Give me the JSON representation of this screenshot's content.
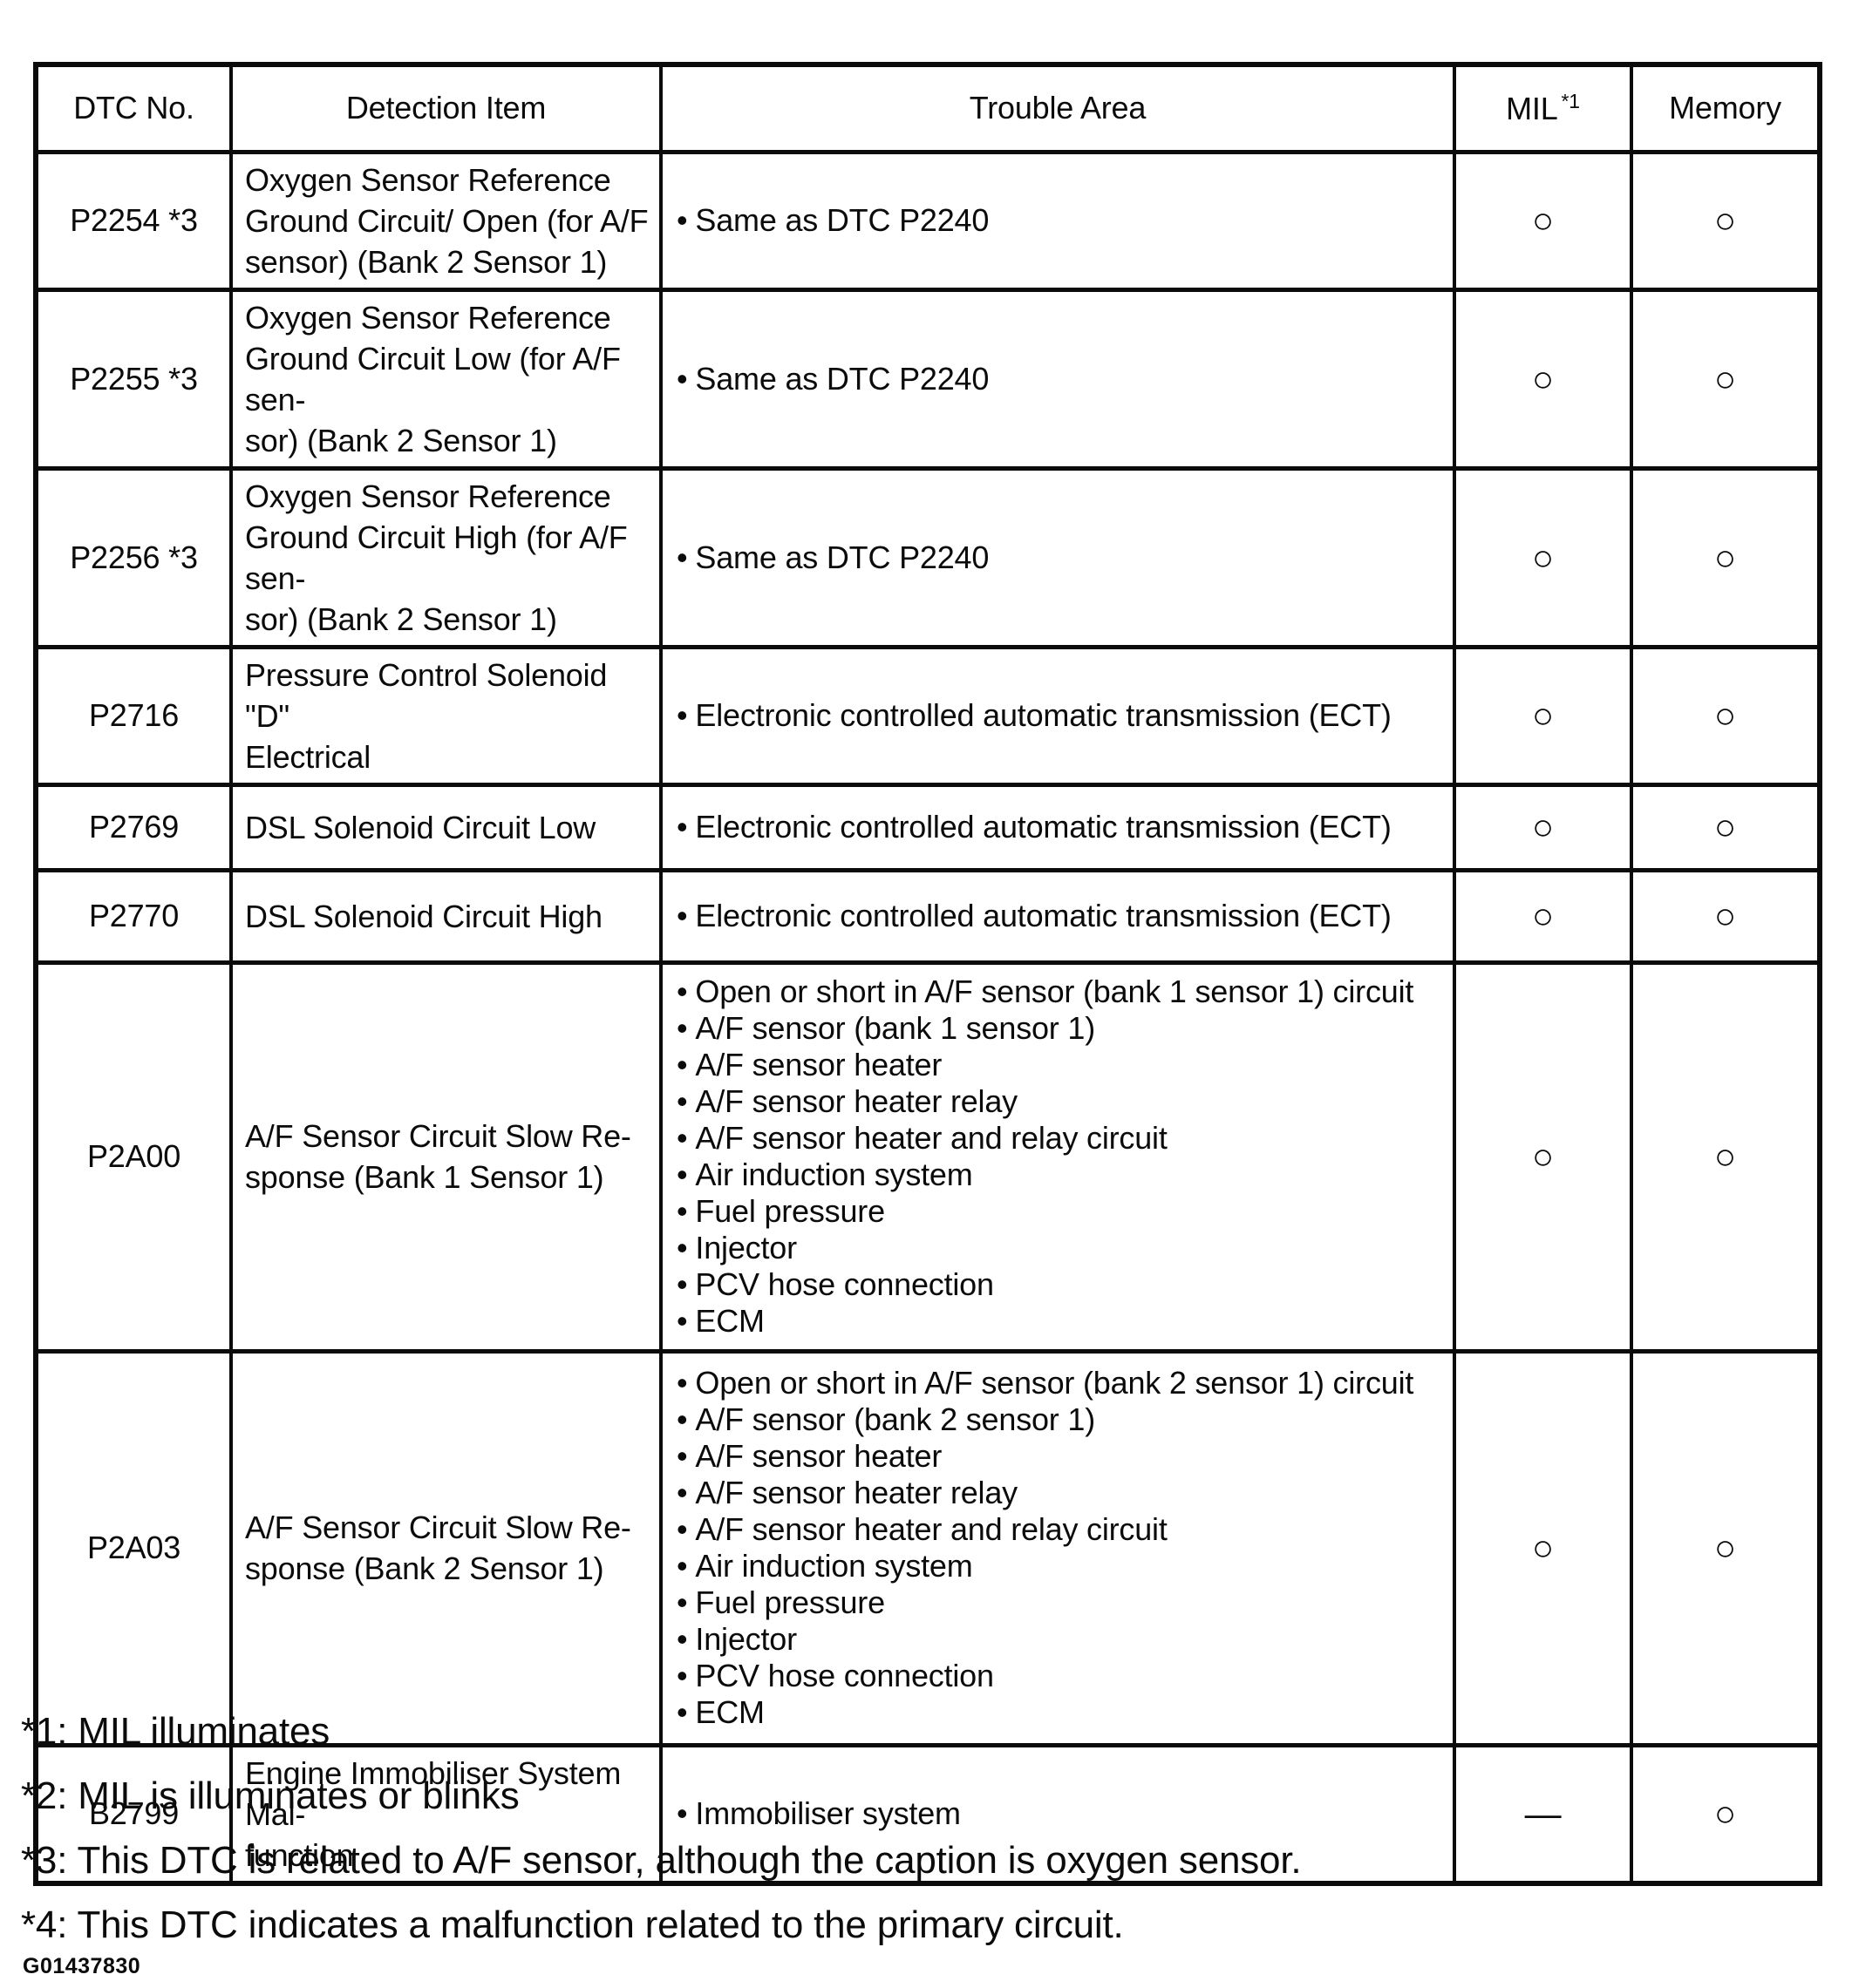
{
  "table": {
    "headers": {
      "dtc": "DTC No.",
      "detection": "Detection Item",
      "trouble": "Trouble Area",
      "mil": "MIL",
      "mil_note": "*1",
      "memory": "Memory"
    },
    "rows": [
      {
        "dtc": "P2254 *3",
        "detection": "Oxygen Sensor Reference\nGround Circuit/ Open (for A/F\nsensor) (Bank 2 Sensor 1)",
        "trouble": [
          "Same as DTC P2240"
        ],
        "mil": "○",
        "memory": "○"
      },
      {
        "dtc": "P2255 *3",
        "detection": "Oxygen Sensor Reference\nGround Circuit Low (for A/F sen-\nsor) (Bank 2 Sensor 1)",
        "trouble": [
          "Same as DTC P2240"
        ],
        "mil": "○",
        "memory": "○"
      },
      {
        "dtc": "P2256 *3",
        "detection": "Oxygen Sensor Reference\nGround Circuit High (for A/F sen-\nsor) (Bank 2 Sensor 1)",
        "trouble": [
          "Same as DTC P2240"
        ],
        "mil": "○",
        "memory": "○"
      },
      {
        "dtc": "P2716",
        "detection": "Pressure Control Solenoid \"D\"\nElectrical",
        "trouble": [
          "Electronic controlled automatic transmission (ECT)"
        ],
        "mil": "○",
        "memory": "○"
      },
      {
        "dtc": "P2769",
        "detection": "DSL Solenoid Circuit Low",
        "trouble": [
          "Electronic controlled automatic transmission (ECT)"
        ],
        "mil": "○",
        "memory": "○"
      },
      {
        "dtc": "P2770",
        "detection": "DSL Solenoid Circuit High",
        "trouble": [
          "Electronic controlled automatic transmission (ECT)"
        ],
        "mil": "○",
        "memory": "○"
      },
      {
        "dtc": "P2A00",
        "detection": "A/F Sensor Circuit Slow Re-\nsponse (Bank 1 Sensor 1)",
        "trouble": [
          "Open or short in A/F sensor (bank 1 sensor 1) circuit",
          "A/F sensor (bank 1 sensor 1)",
          "A/F sensor heater",
          "A/F sensor heater relay",
          "A/F sensor heater and relay circuit",
          "Air induction system",
          "Fuel pressure",
          "Injector",
          "PCV hose connection",
          "ECM"
        ],
        "mil": "○",
        "memory": "○"
      },
      {
        "dtc": "P2A03",
        "detection": "A/F Sensor Circuit Slow Re-\nsponse (Bank 2 Sensor 1)",
        "trouble": [
          "Open or short in A/F sensor (bank 2 sensor 1) circuit",
          "A/F sensor (bank 2 sensor 1)",
          "A/F sensor heater",
          "A/F sensor heater relay",
          "A/F sensor heater and relay circuit",
          "Air induction system",
          "Fuel pressure",
          "Injector",
          "PCV hose connection",
          "ECM"
        ],
        "mil": "○",
        "memory": "○"
      },
      {
        "dtc": "B2799",
        "detection": "Engine Immobiliser System Mal-\nfunction",
        "trouble": [
          "Immobiliser system"
        ],
        "mil": "—",
        "memory": "○"
      }
    ]
  },
  "footnotes": [
    "*1: MIL illuminates",
    "*2: MIL is illuminates or blinks",
    "*3: This DTC is related to A/F sensor, although the caption is oxygen sensor.",
    "*4: This DTC indicates a malfunction related to the primary circuit."
  ],
  "figure_id": "G01437830"
}
